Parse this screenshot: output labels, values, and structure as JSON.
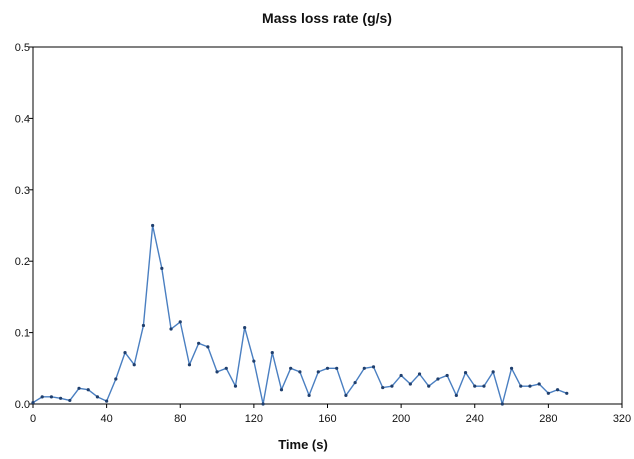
{
  "chart_data": {
    "type": "line",
    "title": "Mass loss rate (g/s)",
    "xlabel": "Time (s)",
    "ylabel": "",
    "xlim": [
      0,
      320
    ],
    "ylim": [
      0,
      0.5
    ],
    "x_ticks": [
      0,
      40,
      80,
      120,
      160,
      200,
      240,
      280,
      320
    ],
    "y_ticks": [
      0.0,
      0.1,
      0.2,
      0.3,
      0.4,
      0.5
    ],
    "x_tick_labels": [
      "0",
      "40",
      "80",
      "120",
      "160",
      "200",
      "240",
      "280",
      "320"
    ],
    "y_tick_labels": [
      "0.0",
      "0.1",
      "0.2",
      "0.3",
      "0.4",
      "0.5"
    ],
    "grid": false,
    "legend": "none",
    "series": [
      {
        "color": "#4a7fc1",
        "marker_color": "#1f3f6e",
        "x": [
          0,
          5,
          10,
          15,
          20,
          25,
          30,
          35,
          40,
          45,
          50,
          55,
          60,
          65,
          70,
          75,
          80,
          85,
          90,
          95,
          100,
          105,
          110,
          115,
          120,
          125,
          130,
          135,
          140,
          145,
          150,
          155,
          160,
          165,
          170,
          175,
          180,
          185,
          190,
          195,
          200,
          205,
          210,
          215,
          220,
          225,
          230,
          235,
          240,
          245,
          250,
          255,
          260,
          265,
          270,
          275,
          280,
          285,
          290
        ],
        "y": [
          0.002,
          0.01,
          0.01,
          0.008,
          0.005,
          0.022,
          0.02,
          0.01,
          0.004,
          0.035,
          0.072,
          0.055,
          0.11,
          0.25,
          0.19,
          0.105,
          0.115,
          0.055,
          0.085,
          0.08,
          0.045,
          0.05,
          0.025,
          0.107,
          0.06,
          0.0,
          0.072,
          0.02,
          0.05,
          0.045,
          0.012,
          0.045,
          0.05,
          0.05,
          0.012,
          0.03,
          0.05,
          0.052,
          0.023,
          0.025,
          0.04,
          0.028,
          0.042,
          0.025,
          0.035,
          0.04,
          0.012,
          0.044,
          0.025,
          0.025,
          0.045,
          0.0,
          0.05,
          0.025,
          0.025,
          0.028,
          0.015,
          0.02,
          0.015
        ]
      }
    ]
  }
}
